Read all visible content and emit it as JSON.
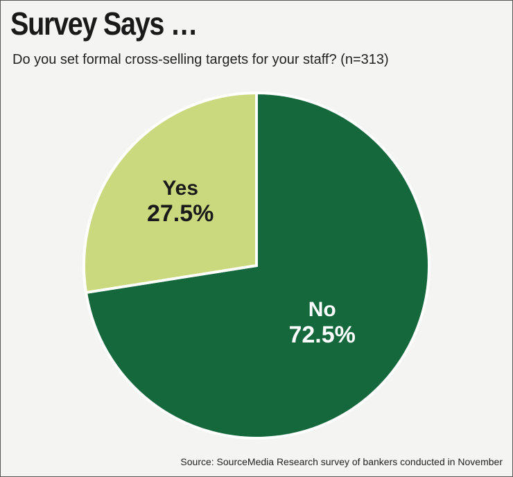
{
  "title": "Survey Says …",
  "subtitle": "Do you set formal cross-selling targets for your staff? (n=313)",
  "source": "Source: SourceMedia Research survey of bankers conducted in November",
  "colors": {
    "yes": "#cbd97e",
    "no": "#14683c",
    "background": "#f4f4f2"
  },
  "chart_data": {
    "type": "pie",
    "title": "Survey Says …",
    "subtitle": "Do you set formal cross-selling targets for your staff? (n=313)",
    "slices": [
      {
        "label": "No",
        "value": 72.5,
        "display": "72.5%",
        "color": "#14683c",
        "text_color": "#ffffff"
      },
      {
        "label": "Yes",
        "value": 27.5,
        "display": "27.5%",
        "color": "#cbd97e",
        "text_color": "#1a1a1a"
      }
    ]
  }
}
